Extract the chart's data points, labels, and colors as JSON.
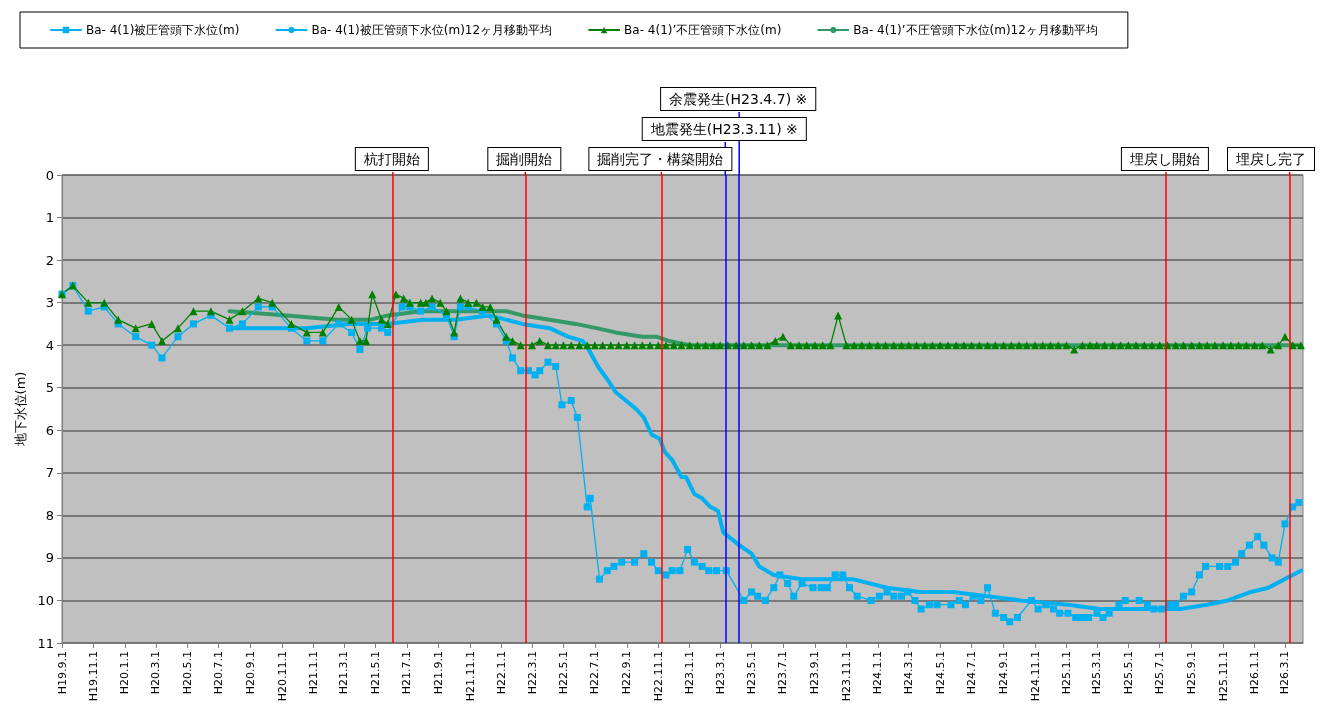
{
  "chart_data": {
    "type": "line",
    "ylabel": "地下水位(m)",
    "xlim": [
      "2007-09-01",
      "2014-04-05"
    ],
    "xticks": [
      {
        "value": "2007-09-01",
        "label": "H19.9.1"
      },
      {
        "value": "2007-11-01",
        "label": "H19.11.1"
      },
      {
        "value": "2008-01-01",
        "label": "H20.1.1"
      },
      {
        "value": "2008-03-01",
        "label": "H20.3.1"
      },
      {
        "value": "2008-05-01",
        "label": "H20.5.1"
      },
      {
        "value": "2008-07-01",
        "label": "H20.7.1"
      },
      {
        "value": "2008-09-01",
        "label": "H20.9.1"
      },
      {
        "value": "2008-11-01",
        "label": "H20.11.1"
      },
      {
        "value": "2009-01-01",
        "label": "H21.1.1"
      },
      {
        "value": "2009-03-01",
        "label": "H21.3.1"
      },
      {
        "value": "2009-05-01",
        "label": "H21.5.1"
      },
      {
        "value": "2009-07-01",
        "label": "H21.7.1"
      },
      {
        "value": "2009-09-01",
        "label": "H21.9.1"
      },
      {
        "value": "2009-11-01",
        "label": "H21.11.1"
      },
      {
        "value": "2010-01-01",
        "label": "H22.1.1"
      },
      {
        "value": "2010-03-01",
        "label": "H22.3.1"
      },
      {
        "value": "2010-05-01",
        "label": "H22.5.1"
      },
      {
        "value": "2010-07-01",
        "label": "H22.7.1"
      },
      {
        "value": "2010-09-01",
        "label": "H22.9.1"
      },
      {
        "value": "2010-11-01",
        "label": "H22.11.1"
      },
      {
        "value": "2011-01-01",
        "label": "H23.1.1"
      },
      {
        "value": "2011-03-01",
        "label": "H23.3.1"
      },
      {
        "value": "2011-05-01",
        "label": "H23.5.1"
      },
      {
        "value": "2011-07-01",
        "label": "H23.7.1"
      },
      {
        "value": "2011-09-01",
        "label": "H23.9.1"
      },
      {
        "value": "2011-11-01",
        "label": "H23.11.1"
      },
      {
        "value": "2012-01-01",
        "label": "H24.1.1"
      },
      {
        "value": "2012-03-01",
        "label": "H24.3.1"
      },
      {
        "value": "2012-05-01",
        "label": "H24.5.1"
      },
      {
        "value": "2012-07-01",
        "label": "H24.7.1"
      },
      {
        "value": "2012-09-01",
        "label": "H24.9.1"
      },
      {
        "value": "2012-11-01",
        "label": "H24.11.1"
      },
      {
        "value": "2013-01-01",
        "label": "H25.1.1"
      },
      {
        "value": "2013-03-01",
        "label": "H25.3.1"
      },
      {
        "value": "2013-05-01",
        "label": "H25.5.1"
      },
      {
        "value": "2013-07-01",
        "label": "H25.7.1"
      },
      {
        "value": "2013-09-01",
        "label": "H25.9.1"
      },
      {
        "value": "2013-11-01",
        "label": "H25.11.1"
      },
      {
        "value": "2014-01-01",
        "label": "H26.1.1"
      },
      {
        "value": "2014-03-01",
        "label": "H26.3.1"
      }
    ],
    "ylim": [
      11,
      0
    ],
    "yticks": [
      0,
      1,
      2,
      3,
      4,
      5,
      6,
      7,
      8,
      9,
      10,
      11
    ],
    "grid": "y",
    "legend": "top left",
    "series": [
      {
        "name": "Ba- 4(1)被圧管頭下水位(m)",
        "color": "#00b0f0",
        "marker": "square",
        "x": [
          "2007-09-01",
          "2007-09-22",
          "2007-10-22",
          "2007-11-22",
          "2007-12-19",
          "2008-01-22",
          "2008-02-22",
          "2008-03-13",
          "2008-04-13",
          "2008-05-13",
          "2008-06-16",
          "2008-07-22",
          "2008-08-16",
          "2008-09-16",
          "2008-10-13",
          "2008-11-19",
          "2008-12-19",
          "2009-01-19",
          "2009-02-19",
          "2009-03-16",
          "2009-04-01",
          "2009-04-16",
          "2009-05-13",
          "2009-05-25",
          "2009-06-22",
          "2009-07-07",
          "2009-07-28",
          "2009-08-19",
          "2009-09-16",
          "2009-10-01",
          "2009-10-13",
          "2009-10-28",
          "2009-11-25",
          "2009-12-22",
          "2010-01-10",
          "2010-01-22",
          "2010-02-07",
          "2010-02-22",
          "2010-03-07",
          "2010-03-16",
          "2010-04-01",
          "2010-04-16",
          "2010-04-28",
          "2010-05-16",
          "2010-05-28",
          "2010-06-16",
          "2010-06-22",
          "2010-07-10",
          "2010-07-25",
          "2010-08-07",
          "2010-08-22",
          "2010-09-16",
          "2010-10-04",
          "2010-10-19",
          "2010-11-01",
          "2010-11-16",
          "2010-11-28",
          "2010-12-13",
          "2010-12-28",
          "2011-01-10",
          "2011-01-25",
          "2011-02-07",
          "2011-02-22",
          "2011-03-13",
          "2011-04-16",
          "2011-05-01",
          "2011-05-13",
          "2011-05-28",
          "2011-06-13",
          "2011-06-25",
          "2011-07-10",
          "2011-07-22",
          "2011-08-07",
          "2011-08-28",
          "2011-09-13",
          "2011-09-25",
          "2011-10-10",
          "2011-10-25",
          "2011-11-07",
          "2011-11-22",
          "2011-12-19",
          "2012-01-04",
          "2012-01-19",
          "2012-02-01",
          "2012-02-16",
          "2012-02-28",
          "2012-03-13",
          "2012-03-25",
          "2012-04-10",
          "2012-04-25",
          "2012-05-22",
          "2012-06-07",
          "2012-06-19",
          "2012-07-04",
          "2012-07-19",
          "2012-08-01",
          "2012-08-16",
          "2012-09-01",
          "2012-09-13",
          "2012-09-28",
          "2012-10-25",
          "2012-11-07",
          "2012-11-22",
          "2012-12-07",
          "2012-12-19",
          "2013-01-04",
          "2013-01-19",
          "2013-02-01",
          "2013-02-13",
          "2013-03-01",
          "2013-03-13",
          "2013-03-25",
          "2013-04-13",
          "2013-04-25",
          "2013-05-22",
          "2013-06-07",
          "2013-06-19",
          "2013-07-04",
          "2013-07-19",
          "2013-08-01",
          "2013-08-16",
          "2013-09-01",
          "2013-09-16",
          "2013-09-28",
          "2013-10-25",
          "2013-11-10",
          "2013-11-25",
          "2013-12-07",
          "2013-12-22",
          "2014-01-07",
          "2014-01-19",
          "2014-02-04",
          "2014-02-16",
          "2014-03-01",
          "2014-03-16",
          "2014-03-28"
        ],
        "values": [
          2.8,
          2.6,
          3.2,
          3.1,
          3.5,
          3.8,
          4.0,
          4.3,
          3.8,
          3.5,
          3.3,
          3.6,
          3.5,
          3.1,
          3.1,
          3.6,
          3.9,
          3.9,
          3.5,
          3.7,
          4.1,
          3.6,
          3.6,
          3.7,
          3.1,
          3.1,
          3.2,
          3.1,
          3.3,
          3.8,
          3.1,
          3.1,
          3.2,
          3.5,
          3.9,
          4.3,
          4.6,
          4.6,
          4.7,
          4.6,
          4.4,
          4.5,
          5.4,
          5.3,
          5.7,
          7.8,
          7.6,
          9.5,
          9.3,
          9.2,
          9.1,
          9.1,
          8.9,
          9.1,
          9.3,
          9.4,
          9.3,
          9.3,
          8.8,
          9.1,
          9.2,
          9.3,
          9.3,
          9.3,
          10.0,
          9.8,
          9.9,
          10.0,
          9.7,
          9.4,
          9.6,
          9.9,
          9.6,
          9.7,
          9.7,
          9.7,
          9.4,
          9.4,
          9.7,
          9.9,
          10.0,
          9.9,
          9.8,
          9.9,
          9.9,
          9.8,
          10.0,
          10.2,
          10.1,
          10.1,
          10.1,
          10.0,
          10.1,
          9.9,
          10.0,
          9.7,
          10.3,
          10.4,
          10.5,
          10.4,
          10.0,
          10.2,
          10.1,
          10.2,
          10.3,
          10.3,
          10.4,
          10.4,
          10.4,
          10.3,
          10.4,
          10.3,
          10.1,
          10.0,
          10.0,
          10.1,
          10.2,
          10.2,
          10.1,
          10.1,
          9.9,
          9.8,
          9.4,
          9.2,
          9.2,
          9.2,
          9.1,
          8.9,
          8.7,
          8.5,
          8.7,
          9.0,
          9.1,
          8.2,
          7.8,
          7.7
        ]
      },
      {
        "name": "Ba- 4(1)被圧管頭下水位(m)12ヶ月移動平均",
        "color": "#00b0f0",
        "marker": "none",
        "x": [
          "2008-07-22",
          "2008-10-01",
          "2008-12-19",
          "2009-03-10",
          "2009-05-25",
          "2009-08-01",
          "2009-10-04",
          "2009-12-07",
          "2010-01-10",
          "2010-02-10",
          "2010-04-04",
          "2010-05-10",
          "2010-06-07",
          "2010-06-19",
          "2010-07-07",
          "2010-07-25",
          "2010-08-10",
          "2010-09-19",
          "2010-10-04",
          "2010-10-19",
          "2010-11-04",
          "2010-11-13",
          "2010-11-28",
          "2010-12-16",
          "2010-12-25",
          "2011-01-10",
          "2011-01-25",
          "2011-02-10",
          "2011-02-25",
          "2011-03-07",
          "2011-04-07",
          "2011-05-01",
          "2011-05-16",
          "2011-06-13",
          "2011-08-07",
          "2011-11-13",
          "2012-01-19",
          "2012-03-22",
          "2012-05-25",
          "2012-08-01",
          "2012-10-04",
          "2013-01-04",
          "2013-03-07",
          "2013-05-10",
          "2013-07-16",
          "2013-08-10",
          "2013-10-01",
          "2013-11-10",
          "2013-12-25",
          "2014-01-28",
          "2014-02-28",
          "2014-04-01"
        ],
        "values": [
          3.6,
          3.6,
          3.6,
          3.5,
          3.5,
          3.4,
          3.4,
          3.3,
          3.4,
          3.5,
          3.6,
          3.8,
          3.9,
          4.1,
          4.5,
          4.8,
          5.1,
          5.5,
          5.7,
          6.1,
          6.2,
          6.5,
          6.7,
          7.1,
          7.1,
          7.5,
          7.6,
          7.8,
          7.9,
          8.4,
          8.7,
          8.9,
          9.2,
          9.4,
          9.5,
          9.5,
          9.7,
          9.8,
          9.8,
          9.9,
          10.0,
          10.1,
          10.2,
          10.2,
          10.2,
          10.2,
          10.1,
          10.0,
          9.8,
          9.7,
          9.5,
          9.3
        ]
      },
      {
        "name": "Ba- 4(1)’不圧管頭下水位(m)",
        "color": "#008000",
        "marker": "triangle",
        "x": [
          "2007-09-01",
          "2007-09-22",
          "2007-10-22",
          "2007-11-22",
          "2007-12-19",
          "2008-01-22",
          "2008-02-22",
          "2008-03-13",
          "2008-04-13",
          "2008-05-13",
          "2008-06-16",
          "2008-07-22",
          "2008-08-16",
          "2008-09-16",
          "2008-10-13",
          "2008-11-19",
          "2008-12-19",
          "2009-01-19",
          "2009-02-19",
          "2009-03-16",
          "2009-04-01",
          "2009-04-13",
          "2009-04-25",
          "2009-05-13",
          "2009-05-25",
          "2009-06-10",
          "2009-06-25",
          "2009-07-07",
          "2009-07-28",
          "2009-08-07",
          "2009-08-19",
          "2009-09-04",
          "2009-09-16",
          "2009-10-01",
          "2009-10-13",
          "2009-10-28",
          "2009-11-13",
          "2009-11-25",
          "2009-12-10",
          "2009-12-22",
          "2010-01-10",
          "2010-01-22",
          "2010-02-07",
          "2010-03-01",
          "2010-03-16",
          "2010-04-01",
          "2010-04-16",
          "2010-05-01",
          "2010-05-16",
          "2010-06-01",
          "2010-06-16",
          "2010-07-01",
          "2010-07-16",
          "2010-08-01",
          "2010-08-16",
          "2010-09-01",
          "2010-09-16",
          "2010-10-01",
          "2010-10-16",
          "2010-11-01",
          "2010-11-16",
          "2010-12-01",
          "2010-12-16",
          "2011-01-01",
          "2011-01-16",
          "2011-02-01",
          "2011-02-16",
          "2011-03-01",
          "2011-03-16",
          "2011-04-01",
          "2011-04-16",
          "2011-05-01",
          "2011-05-16",
          "2011-06-01",
          "2011-06-16",
          "2011-07-01",
          "2011-07-16",
          "2011-08-01",
          "2011-08-16",
          "2011-09-01",
          "2011-09-16",
          "2011-10-01",
          "2011-10-16",
          "2011-11-01",
          "2011-11-16",
          "2011-12-01",
          "2011-12-16",
          "2012-01-01",
          "2012-01-16",
          "2012-02-01",
          "2012-02-16",
          "2012-03-01",
          "2012-03-16",
          "2012-04-01",
          "2012-04-16",
          "2012-05-01",
          "2012-05-16",
          "2012-06-01",
          "2012-06-16",
          "2012-07-01",
          "2012-07-16",
          "2012-08-01",
          "2012-08-16",
          "2012-09-01",
          "2012-09-16",
          "2012-10-01",
          "2012-10-16",
          "2012-11-01",
          "2012-11-16",
          "2012-12-01",
          "2012-12-16",
          "2013-01-01",
          "2013-01-16",
          "2013-02-01",
          "2013-02-16",
          "2013-03-01",
          "2013-03-16",
          "2013-04-01",
          "2013-04-16",
          "2013-05-01",
          "2013-05-16",
          "2013-06-01",
          "2013-06-16",
          "2013-07-01",
          "2013-07-16",
          "2013-08-01",
          "2013-08-16",
          "2013-09-01",
          "2013-09-16",
          "2013-10-01",
          "2013-10-16",
          "2013-11-01",
          "2013-11-16",
          "2013-12-01",
          "2013-12-16",
          "2014-01-01",
          "2014-01-16",
          "2014-02-01",
          "2014-02-16",
          "2014-03-01",
          "2014-03-16",
          "2014-04-01"
        ],
        "values": [
          2.8,
          2.6,
          3.0,
          3.0,
          3.4,
          3.6,
          3.5,
          3.9,
          3.6,
          3.2,
          3.2,
          3.4,
          3.2,
          2.9,
          3.0,
          3.5,
          3.7,
          3.7,
          3.1,
          3.4,
          3.9,
          3.9,
          2.8,
          3.4,
          3.5,
          2.8,
          2.9,
          3.0,
          3.0,
          3.0,
          2.9,
          3.0,
          3.2,
          3.7,
          2.9,
          3.0,
          3.0,
          3.1,
          3.1,
          3.4,
          3.8,
          3.9,
          4.0,
          4.0,
          3.9,
          4.0,
          4.0,
          4.0,
          4.0,
          4.0,
          4.0,
          4.0,
          4.0,
          4.0,
          4.0,
          4.0,
          4.0,
          4.0,
          4.0,
          4.0,
          4.0,
          4.0,
          4.0,
          4.0,
          4.0,
          4.0,
          4.0,
          4.0,
          4.0,
          4.0,
          4.0,
          4.0,
          4.0,
          4.0,
          3.9,
          3.8,
          4.0,
          4.0,
          4.0,
          4.0,
          4.0,
          4.0,
          3.3,
          4.0,
          4.0,
          4.0,
          4.0,
          4.0,
          4.0,
          4.0,
          4.0,
          4.0,
          4.0,
          4.0,
          4.0,
          4.0,
          4.0,
          4.0,
          4.0,
          4.0,
          4.0,
          4.0,
          4.0,
          4.0,
          4.0,
          4.0,
          4.0,
          4.0,
          4.0,
          4.0,
          4.0,
          4.0,
          4.1,
          4.0,
          4.0,
          4.0,
          4.0,
          4.0,
          4.0,
          4.0,
          4.0,
          4.0,
          4.0,
          4.0,
          4.0,
          4.0,
          4.0,
          4.0,
          4.0,
          4.0,
          4.0,
          4.0,
          4.0,
          4.0,
          4.0,
          4.0,
          4.0,
          4.1,
          4.0,
          3.8,
          4.0,
          4.0
        ]
      },
      {
        "name": "Ba- 4(1)’不圧管頭下水位(m)12ヶ月移動平均",
        "color": "#339966",
        "marker": "none",
        "x": [
          "2008-07-22",
          "2008-11-10",
          "2009-02-16",
          "2009-04-22",
          "2009-05-25",
          "2009-07-28",
          "2009-10-04",
          "2009-12-07",
          "2010-01-10",
          "2010-02-10",
          "2010-04-04",
          "2010-05-25",
          "2010-07-04",
          "2010-08-10",
          "2010-10-01",
          "2010-10-28",
          "2010-11-22",
          "2011-01-01",
          "2011-04-07",
          "2011-11-01",
          "2012-09-01",
          "2013-07-01",
          "2014-04-01"
        ],
        "values": [
          3.2,
          3.3,
          3.4,
          3.4,
          3.3,
          3.2,
          3.2,
          3.2,
          3.2,
          3.3,
          3.4,
          3.5,
          3.6,
          3.7,
          3.8,
          3.8,
          3.9,
          4.0,
          4.0,
          4.0,
          4.0,
          4.0,
          4.0
        ]
      }
    ],
    "ref_lines": [
      {
        "axis": "x",
        "value": "2009-06-04",
        "label": "杭打開始",
        "color": "#ff0000"
      },
      {
        "axis": "x",
        "value": "2010-02-16",
        "label": "掘削開始",
        "color": "#ff0000"
      },
      {
        "axis": "x",
        "value": "2010-11-07",
        "label": "掘削完了・構築開始",
        "color": "#ff0000"
      },
      {
        "axis": "x",
        "value": "2011-03-11",
        "label": "地震発生(H23.3.11) ※",
        "color": "#0000ff"
      },
      {
        "axis": "x",
        "value": "2011-04-07",
        "label": "余震発生(H23.4.7) ※",
        "color": "#0000ff"
      },
      {
        "axis": "x",
        "value": "2013-07-13",
        "label": "埋戻し開始",
        "color": "#ff0000"
      },
      {
        "axis": "x",
        "value": "2014-03-10",
        "label": "埋戻し完了",
        "color": "#ff0000"
      }
    ]
  }
}
